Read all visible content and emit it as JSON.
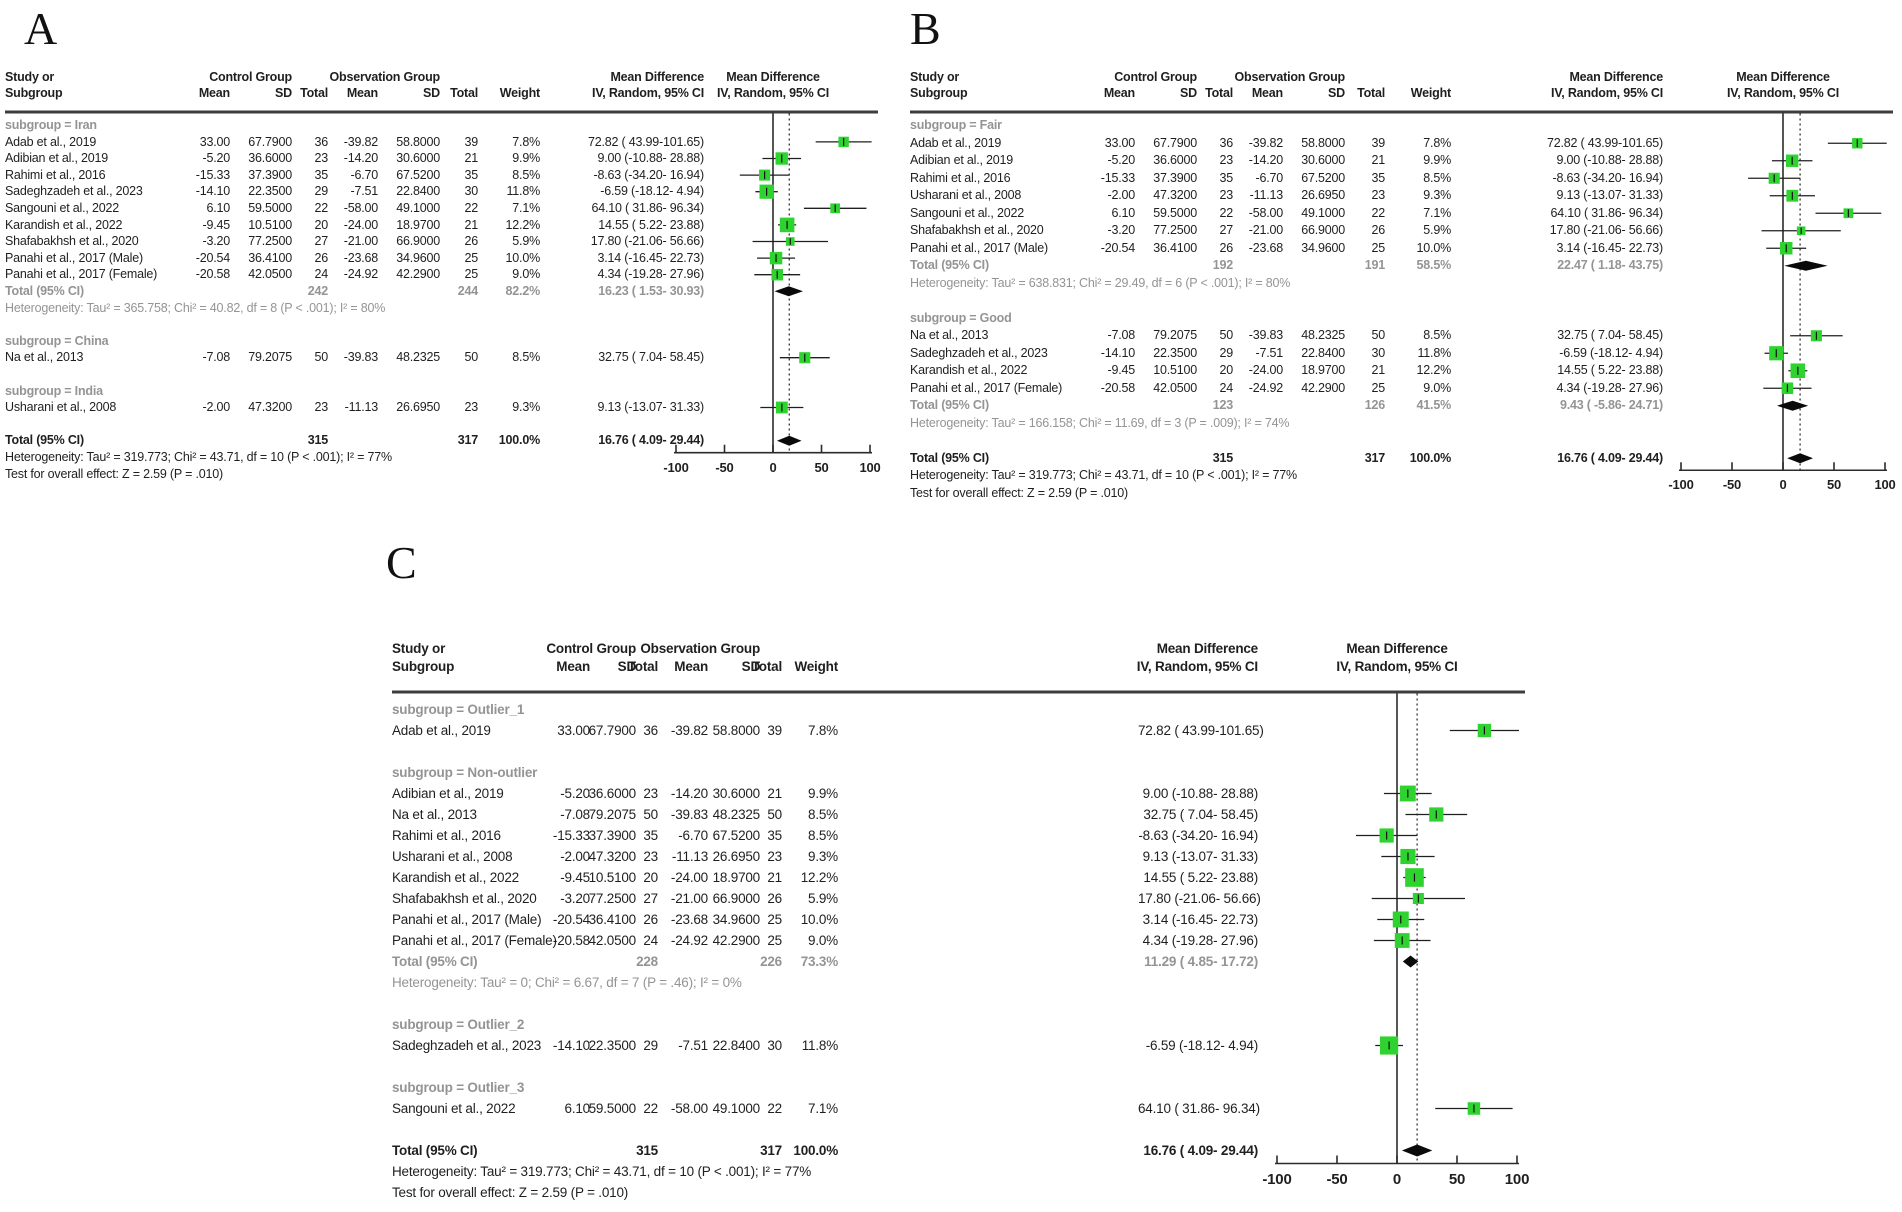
{
  "colors": {
    "marker_green": "#2FD32F",
    "subtotal_gray": "#949494",
    "text_black": "#1f1f1f",
    "rule_gray": "#3d3d3d"
  },
  "chart_data": {
    "type": "forest",
    "axis": {
      "min": -100,
      "max": 100,
      "ticks": [
        -100,
        -50,
        0,
        50,
        100
      ]
    },
    "pooled_estimate": 16.76,
    "column_headers": {
      "study_line1": "Study or",
      "study_line2": "Subgroup",
      "control_group": "Control Group",
      "observation_group": "Observation Group",
      "mean": "Mean",
      "sd": "SD",
      "total": "Total",
      "weight": "Weight",
      "md_line1": "Mean Difference",
      "md_line2": "IV, Random, 95% CI"
    },
    "panels": [
      {
        "letter": "A",
        "rows": [
          {
            "t": "sub",
            "label": "subgroup = Iran"
          },
          {
            "t": "s",
            "label": "Adab et al., 2019",
            "cm": "33.00",
            "csd": "67.7900",
            "ct": "36",
            "om": "-39.82",
            "osd": "58.8000",
            "ot": "39",
            "w": "7.8%",
            "wv": 7.8,
            "ci": "72.82 ( 43.99-101.65)",
            "est": 72.82,
            "lo": 43.99,
            "hi": 101.65
          },
          {
            "t": "s",
            "label": "Adibian et al., 2019",
            "cm": "-5.20",
            "csd": "36.6000",
            "ct": "23",
            "om": "-14.20",
            "osd": "30.6000",
            "ot": "21",
            "w": "9.9%",
            "wv": 9.9,
            "ci": "9.00 (-10.88- 28.88)",
            "est": 9.0,
            "lo": -10.88,
            "hi": 28.88
          },
          {
            "t": "s",
            "label": "Rahimi et al., 2016",
            "cm": "-15.33",
            "csd": "37.3900",
            "ct": "35",
            "om": "-6.70",
            "osd": "67.5200",
            "ot": "35",
            "w": "8.5%",
            "wv": 8.5,
            "ci": "-8.63 (-34.20- 16.94)",
            "est": -8.63,
            "lo": -34.2,
            "hi": 16.94
          },
          {
            "t": "s",
            "label": "Sadeghzadeh et al., 2023",
            "cm": "-14.10",
            "csd": "22.3500",
            "ct": "29",
            "om": "-7.51",
            "osd": "22.8400",
            "ot": "30",
            "w": "11.8%",
            "wv": 11.8,
            "ci": "-6.59 (-18.12- 4.94)",
            "est": -6.59,
            "lo": -18.12,
            "hi": 4.94
          },
          {
            "t": "s",
            "label": "Sangouni et al., 2022",
            "cm": "6.10",
            "csd": "59.5000",
            "ct": "22",
            "om": "-58.00",
            "osd": "49.1000",
            "ot": "22",
            "w": "7.1%",
            "wv": 7.1,
            "ci": "64.10 ( 31.86- 96.34)",
            "est": 64.1,
            "lo": 31.86,
            "hi": 96.34
          },
          {
            "t": "s",
            "label": "Karandish et al., 2022",
            "cm": "-9.45",
            "csd": "10.5100",
            "ct": "20",
            "om": "-24.00",
            "osd": "18.9700",
            "ot": "21",
            "w": "12.2%",
            "wv": 12.2,
            "ci": "14.55 ( 5.22- 23.88)",
            "est": 14.55,
            "lo": 5.22,
            "hi": 23.88
          },
          {
            "t": "s",
            "label": "Shafabakhsh et al., 2020",
            "cm": "-3.20",
            "csd": "77.2500",
            "ct": "27",
            "om": "-21.00",
            "osd": "66.9000",
            "ot": "26",
            "w": "5.9%",
            "wv": 5.9,
            "ci": "17.80 (-21.06- 56.66)",
            "est": 17.8,
            "lo": -21.06,
            "hi": 56.66
          },
          {
            "t": "s",
            "label": "Panahi et al., 2017 (Male)",
            "cm": "-20.54",
            "csd": "36.4100",
            "ct": "26",
            "om": "-23.68",
            "osd": "34.9600",
            "ot": "25",
            "w": "10.0%",
            "wv": 10.0,
            "ci": "3.14 (-16.45- 22.73)",
            "est": 3.14,
            "lo": -16.45,
            "hi": 22.73
          },
          {
            "t": "s",
            "label": "Panahi et al., 2017 (Female)",
            "cm": "-20.58",
            "csd": "42.0500",
            "ct": "24",
            "om": "-24.92",
            "osd": "42.2900",
            "ot": "25",
            "w": "9.0%",
            "wv": 9.0,
            "ci": "4.34 (-19.28- 27.96)",
            "est": 4.34,
            "lo": -19.28,
            "hi": 27.96
          },
          {
            "t": "st",
            "label": "Total (95% CI)",
            "ct": "242",
            "ot": "244",
            "w": "82.2%",
            "ci": "16.23 ( 1.53- 30.93)",
            "est": 16.23,
            "lo": 1.53,
            "hi": 30.93
          },
          {
            "t": "het",
            "label": "Heterogeneity: Tau² = 365.758; Chi² = 40.82, df = 8 (P < .001); I² = 80%"
          },
          {
            "t": "sp"
          },
          {
            "t": "sub",
            "label": "subgroup = China"
          },
          {
            "t": "s",
            "label": "Na et al., 2013",
            "cm": "-7.08",
            "csd": "79.2075",
            "ct": "50",
            "om": "-39.83",
            "osd": "48.2325",
            "ot": "50",
            "w": "8.5%",
            "wv": 8.5,
            "ci": "32.75 ( 7.04- 58.45)",
            "est": 32.75,
            "lo": 7.04,
            "hi": 58.45
          },
          {
            "t": "sp"
          },
          {
            "t": "sub",
            "label": "subgroup = India"
          },
          {
            "t": "s",
            "label": "Usharani et al., 2008",
            "cm": "-2.00",
            "csd": "47.3200",
            "ct": "23",
            "om": "-11.13",
            "osd": "26.6950",
            "ot": "23",
            "w": "9.3%",
            "wv": 9.3,
            "ci": "9.13 (-13.07- 31.33)",
            "est": 9.13,
            "lo": -13.07,
            "hi": 31.33
          },
          {
            "t": "sp"
          },
          {
            "t": "tot",
            "label": "Total (95% CI)",
            "ct": "315",
            "ot": "317",
            "w": "100.0%",
            "ci": "16.76 ( 4.09- 29.44)",
            "est": 16.76,
            "lo": 4.09,
            "hi": 29.44
          },
          {
            "t": "foot",
            "label": "Heterogeneity: Tau² = 319.773; Chi² = 43.71, df = 10 (P < .001); I² = 77%"
          },
          {
            "t": "foot",
            "label": "Test for overall effect: Z = 2.59 (P = .010)"
          }
        ]
      },
      {
        "letter": "B",
        "rows": [
          {
            "t": "sub",
            "label": "subgroup = Fair"
          },
          {
            "t": "s",
            "label": "Adab et al., 2019",
            "cm": "33.00",
            "csd": "67.7900",
            "ct": "36",
            "om": "-39.82",
            "osd": "58.8000",
            "ot": "39",
            "w": "7.8%",
            "wv": 7.8,
            "ci": "72.82 ( 43.99-101.65)",
            "est": 72.82,
            "lo": 43.99,
            "hi": 101.65
          },
          {
            "t": "s",
            "label": "Adibian et al., 2019",
            "cm": "-5.20",
            "csd": "36.6000",
            "ct": "23",
            "om": "-14.20",
            "osd": "30.6000",
            "ot": "21",
            "w": "9.9%",
            "wv": 9.9,
            "ci": "9.00 (-10.88- 28.88)",
            "est": 9.0,
            "lo": -10.88,
            "hi": 28.88
          },
          {
            "t": "s",
            "label": "Rahimi et al., 2016",
            "cm": "-15.33",
            "csd": "37.3900",
            "ct": "35",
            "om": "-6.70",
            "osd": "67.5200",
            "ot": "35",
            "w": "8.5%",
            "wv": 8.5,
            "ci": "-8.63 (-34.20- 16.94)",
            "est": -8.63,
            "lo": -34.2,
            "hi": 16.94
          },
          {
            "t": "s",
            "label": "Usharani et al., 2008",
            "cm": "-2.00",
            "csd": "47.3200",
            "ct": "23",
            "om": "-11.13",
            "osd": "26.6950",
            "ot": "23",
            "w": "9.3%",
            "wv": 9.3,
            "ci": "9.13 (-13.07- 31.33)",
            "est": 9.13,
            "lo": -13.07,
            "hi": 31.33
          },
          {
            "t": "s",
            "label": "Sangouni et al., 2022",
            "cm": "6.10",
            "csd": "59.5000",
            "ct": "22",
            "om": "-58.00",
            "osd": "49.1000",
            "ot": "22",
            "w": "7.1%",
            "wv": 7.1,
            "ci": "64.10 ( 31.86- 96.34)",
            "est": 64.1,
            "lo": 31.86,
            "hi": 96.34
          },
          {
            "t": "s",
            "label": "Shafabakhsh et al., 2020",
            "cm": "-3.20",
            "csd": "77.2500",
            "ct": "27",
            "om": "-21.00",
            "osd": "66.9000",
            "ot": "26",
            "w": "5.9%",
            "wv": 5.9,
            "ci": "17.80 (-21.06- 56.66)",
            "est": 17.8,
            "lo": -21.06,
            "hi": 56.66
          },
          {
            "t": "s",
            "label": "Panahi et al., 2017 (Male)",
            "cm": "-20.54",
            "csd": "36.4100",
            "ct": "26",
            "om": "-23.68",
            "osd": "34.9600",
            "ot": "25",
            "w": "10.0%",
            "wv": 10.0,
            "ci": "3.14 (-16.45- 22.73)",
            "est": 3.14,
            "lo": -16.45,
            "hi": 22.73
          },
          {
            "t": "st",
            "label": "Total (95% CI)",
            "ct": "192",
            "ot": "191",
            "w": "58.5%",
            "ci": "22.47 ( 1.18- 43.75)",
            "est": 22.47,
            "lo": 1.18,
            "hi": 43.75
          },
          {
            "t": "het",
            "label": "Heterogeneity: Tau² = 638.831; Chi² = 29.49, df = 6 (P < .001); I² = 80%"
          },
          {
            "t": "sp"
          },
          {
            "t": "sub",
            "label": "subgroup = Good"
          },
          {
            "t": "s",
            "label": "Na et al., 2013",
            "cm": "-7.08",
            "csd": "79.2075",
            "ct": "50",
            "om": "-39.83",
            "osd": "48.2325",
            "ot": "50",
            "w": "8.5%",
            "wv": 8.5,
            "ci": "32.75 ( 7.04- 58.45)",
            "est": 32.75,
            "lo": 7.04,
            "hi": 58.45
          },
          {
            "t": "s",
            "label": "Sadeghzadeh et al., 2023",
            "cm": "-14.10",
            "csd": "22.3500",
            "ct": "29",
            "om": "-7.51",
            "osd": "22.8400",
            "ot": "30",
            "w": "11.8%",
            "wv": 11.8,
            "ci": "-6.59 (-18.12- 4.94)",
            "est": -6.59,
            "lo": -18.12,
            "hi": 4.94
          },
          {
            "t": "s",
            "label": "Karandish et al., 2022",
            "cm": "-9.45",
            "csd": "10.5100",
            "ct": "20",
            "om": "-24.00",
            "osd": "18.9700",
            "ot": "21",
            "w": "12.2%",
            "wv": 12.2,
            "ci": "14.55 ( 5.22- 23.88)",
            "est": 14.55,
            "lo": 5.22,
            "hi": 23.88
          },
          {
            "t": "s",
            "label": "Panahi et al., 2017 (Female)",
            "cm": "-20.58",
            "csd": "42.0500",
            "ct": "24",
            "om": "-24.92",
            "osd": "42.2900",
            "ot": "25",
            "w": "9.0%",
            "wv": 9.0,
            "ci": "4.34 (-19.28- 27.96)",
            "est": 4.34,
            "lo": -19.28,
            "hi": 27.96
          },
          {
            "t": "st",
            "label": "Total (95% CI)",
            "ct": "123",
            "ot": "126",
            "w": "41.5%",
            "ci": "9.43 ( -5.86- 24.71)",
            "est": 9.43,
            "lo": -5.86,
            "hi": 24.71
          },
          {
            "t": "het",
            "label": "Heterogeneity: Tau² = 166.158; Chi² = 11.69, df = 3 (P = .009); I² = 74%"
          },
          {
            "t": "sp"
          },
          {
            "t": "tot",
            "label": "Total (95% CI)",
            "ct": "315",
            "ot": "317",
            "w": "100.0%",
            "ci": "16.76 ( 4.09- 29.44)",
            "est": 16.76,
            "lo": 4.09,
            "hi": 29.44
          },
          {
            "t": "foot",
            "label": "Heterogeneity: Tau² = 319.773; Chi² = 43.71, df = 10 (P < .001); I² = 77%"
          },
          {
            "t": "foot",
            "label": "Test for overall effect: Z = 2.59 (P = .010)"
          }
        ]
      },
      {
        "letter": "C",
        "rows": [
          {
            "t": "sub",
            "label": "subgroup = Outlier_1"
          },
          {
            "t": "s",
            "label": "Adab et al., 2019",
            "cm": "33.00",
            "csd": "67.7900",
            "ct": "36",
            "om": "-39.82",
            "osd": "58.8000",
            "ot": "39",
            "w": "7.8%",
            "wv": 7.8,
            "ci": "72.82 ( 43.99-101.65)",
            "est": 72.82,
            "lo": 43.99,
            "hi": 101.65
          },
          {
            "t": "sp"
          },
          {
            "t": "sub",
            "label": "subgroup = Non-outlier"
          },
          {
            "t": "s",
            "label": "Adibian et al., 2019",
            "cm": "-5.20",
            "csd": "36.6000",
            "ct": "23",
            "om": "-14.20",
            "osd": "30.6000",
            "ot": "21",
            "w": "9.9%",
            "wv": 9.9,
            "ci": "9.00 (-10.88- 28.88)",
            "est": 9.0,
            "lo": -10.88,
            "hi": 28.88
          },
          {
            "t": "s",
            "label": "Na et al., 2013",
            "cm": "-7.08",
            "csd": "79.2075",
            "ct": "50",
            "om": "-39.83",
            "osd": "48.2325",
            "ot": "50",
            "w": "8.5%",
            "wv": 8.5,
            "ci": "32.75 ( 7.04- 58.45)",
            "est": 32.75,
            "lo": 7.04,
            "hi": 58.45
          },
          {
            "t": "s",
            "label": "Rahimi et al., 2016",
            "cm": "-15.33",
            "csd": "37.3900",
            "ct": "35",
            "om": "-6.70",
            "osd": "67.5200",
            "ot": "35",
            "w": "8.5%",
            "wv": 8.5,
            "ci": "-8.63 (-34.20- 16.94)",
            "est": -8.63,
            "lo": -34.2,
            "hi": 16.94
          },
          {
            "t": "s",
            "label": "Usharani et al., 2008",
            "cm": "-2.00",
            "csd": "47.3200",
            "ct": "23",
            "om": "-11.13",
            "osd": "26.6950",
            "ot": "23",
            "w": "9.3%",
            "wv": 9.3,
            "ci": "9.13 (-13.07- 31.33)",
            "est": 9.13,
            "lo": -13.07,
            "hi": 31.33
          },
          {
            "t": "s",
            "label": "Karandish et al., 2022",
            "cm": "-9.45",
            "csd": "10.5100",
            "ct": "20",
            "om": "-24.00",
            "osd": "18.9700",
            "ot": "21",
            "w": "12.2%",
            "wv": 12.2,
            "ci": "14.55 ( 5.22- 23.88)",
            "est": 14.55,
            "lo": 5.22,
            "hi": 23.88
          },
          {
            "t": "s",
            "label": "Shafabakhsh et al., 2020",
            "cm": "-3.20",
            "csd": "77.2500",
            "ct": "27",
            "om": "-21.00",
            "osd": "66.9000",
            "ot": "26",
            "w": "5.9%",
            "wv": 5.9,
            "ci": "17.80 (-21.06- 56.66)",
            "est": 17.8,
            "lo": -21.06,
            "hi": 56.66
          },
          {
            "t": "s",
            "label": "Panahi et al., 2017 (Male)",
            "cm": "-20.54",
            "csd": "36.4100",
            "ct": "26",
            "om": "-23.68",
            "osd": "34.9600",
            "ot": "25",
            "w": "10.0%",
            "wv": 10.0,
            "ci": "3.14 (-16.45- 22.73)",
            "est": 3.14,
            "lo": -16.45,
            "hi": 22.73
          },
          {
            "t": "s",
            "label": "Panahi et al., 2017 (Female)",
            "cm": "-20.58",
            "csd": "42.0500",
            "ct": "24",
            "om": "-24.92",
            "osd": "42.2900",
            "ot": "25",
            "w": "9.0%",
            "wv": 9.0,
            "ci": "4.34 (-19.28- 27.96)",
            "est": 4.34,
            "lo": -19.28,
            "hi": 27.96
          },
          {
            "t": "st",
            "label": "Total (95% CI)",
            "ct": "228",
            "ot": "226",
            "w": "73.3%",
            "ci": "11.29 ( 4.85- 17.72)",
            "est": 11.29,
            "lo": 4.85,
            "hi": 17.72
          },
          {
            "t": "het",
            "label": "Heterogeneity: Tau² = 0; Chi² = 6.67, df = 7 (P = .46); I² = 0%"
          },
          {
            "t": "sp"
          },
          {
            "t": "sub",
            "label": "subgroup = Outlier_2"
          },
          {
            "t": "s",
            "label": "Sadeghzadeh et al., 2023",
            "cm": "-14.10",
            "csd": "22.3500",
            "ct": "29",
            "om": "-7.51",
            "osd": "22.8400",
            "ot": "30",
            "w": "11.8%",
            "wv": 11.8,
            "ci": "-6.59 (-18.12- 4.94)",
            "est": -6.59,
            "lo": -18.12,
            "hi": 4.94
          },
          {
            "t": "sp"
          },
          {
            "t": "sub",
            "label": "subgroup = Outlier_3"
          },
          {
            "t": "s",
            "label": "Sangouni et al., 2022",
            "cm": "6.10",
            "csd": "59.5000",
            "ct": "22",
            "om": "-58.00",
            "osd": "49.1000",
            "ot": "22",
            "w": "7.1%",
            "wv": 7.1,
            "ci": "64.10 ( 31.86- 96.34)",
            "est": 64.1,
            "lo": 31.86,
            "hi": 96.34
          },
          {
            "t": "sp"
          },
          {
            "t": "tot",
            "label": "Total (95% CI)",
            "ct": "315",
            "ot": "317",
            "w": "100.0%",
            "ci": "16.76 ( 4.09- 29.44)",
            "est": 16.76,
            "lo": 4.09,
            "hi": 29.44
          },
          {
            "t": "foot",
            "label": "Heterogeneity: Tau² = 319.773; Chi² = 43.71, df = 10 (P < .001); I² = 77%"
          },
          {
            "t": "foot",
            "label": "Test for overall effect: Z = 2.59 (P = .010)"
          }
        ]
      }
    ]
  }
}
